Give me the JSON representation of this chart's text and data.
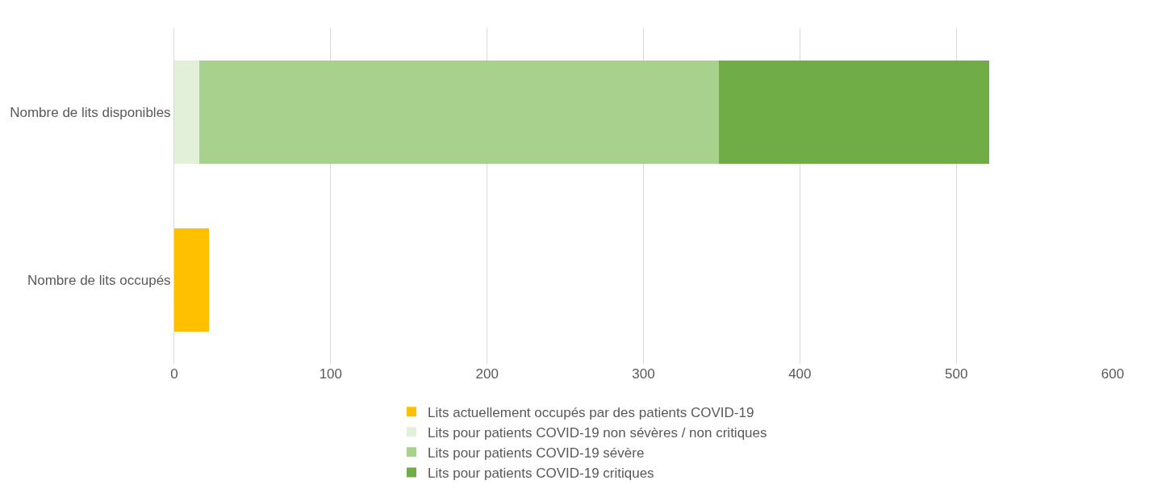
{
  "chart_data": {
    "type": "bar",
    "orientation": "horizontal",
    "stacked": true,
    "categories": [
      "Nombre de lits disponibles",
      "Nombre de lits occupés"
    ],
    "series": [
      {
        "name": "Lits actuellement occupés par des patients COVID-19",
        "color": "#ffc000",
        "values": [
          null,
          22
        ]
      },
      {
        "name": "Lits pour patients COVID-19 non sévères / non critiques",
        "color": "#e2f0d9",
        "values": [
          16,
          null
        ]
      },
      {
        "name": "Lits pour patients COVID-19 sévère",
        "color": "#a9d18e",
        "values": [
          332,
          null
        ]
      },
      {
        "name": "Lits pour patients COVID-19 critiques",
        "color": "#70ad47",
        "values": [
          173,
          null
        ]
      }
    ],
    "xlim": [
      0,
      600
    ],
    "xticks": [
      0,
      100,
      200,
      300,
      400,
      500,
      600
    ],
    "grid": "x",
    "legend": "bottom"
  }
}
